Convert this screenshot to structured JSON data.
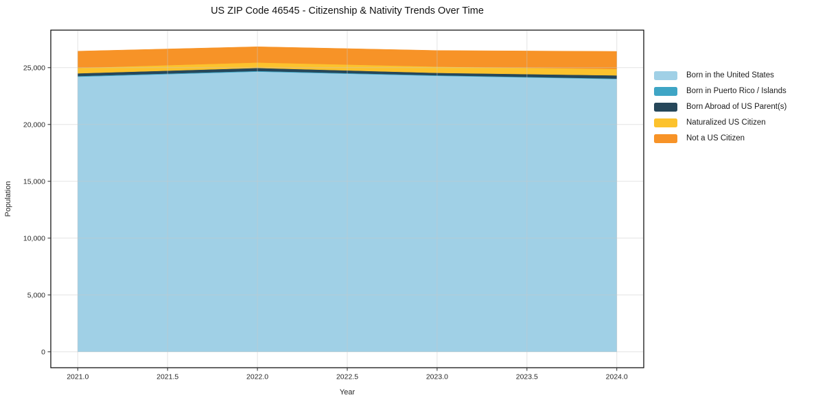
{
  "chart_data": {
    "type": "area",
    "stacked": true,
    "title": "US ZIP Code 46545 - Citizenship & Nativity Trends Over Time",
    "xlabel": "Year",
    "ylabel": "Population",
    "x": [
      2021,
      2022,
      2023,
      2024
    ],
    "series": [
      {
        "name": "Born in the United States",
        "color": "#a0d0e6",
        "values": [
          24200,
          24650,
          24280,
          24000
        ]
      },
      {
        "name": "Born in Puerto Rico / Islands",
        "color": "#3fa5c5",
        "values": [
          60,
          60,
          50,
          40
        ]
      },
      {
        "name": "Born Abroad of US Parent(s)",
        "color": "#26475a",
        "values": [
          240,
          260,
          210,
          280
        ]
      },
      {
        "name": "Naturalized US Citizen",
        "color": "#fcc22d",
        "values": [
          480,
          480,
          550,
          560
        ]
      },
      {
        "name": "Not a US Citizen",
        "color": "#f79327",
        "values": [
          1470,
          1390,
          1420,
          1550
        ]
      }
    ],
    "totals": [
      26450,
      26840,
      26510,
      26430
    ],
    "xlim": [
      2020.85,
      2024.15
    ],
    "ylim": [
      -1400,
      28300
    ],
    "xticks": [
      2021.0,
      2021.5,
      2022.0,
      2022.5,
      2023.0,
      2023.5,
      2024.0
    ],
    "xtick_labels": [
      "2021.0",
      "2021.5",
      "2022.0",
      "2022.5",
      "2023.0",
      "2023.5",
      "2024.0"
    ],
    "yticks": [
      0,
      5000,
      10000,
      15000,
      20000,
      25000
    ],
    "ytick_labels": [
      "0",
      "5,000",
      "10,000",
      "15,000",
      "20,000",
      "25,000"
    ],
    "grid": true,
    "legend_position": "right-outside"
  }
}
